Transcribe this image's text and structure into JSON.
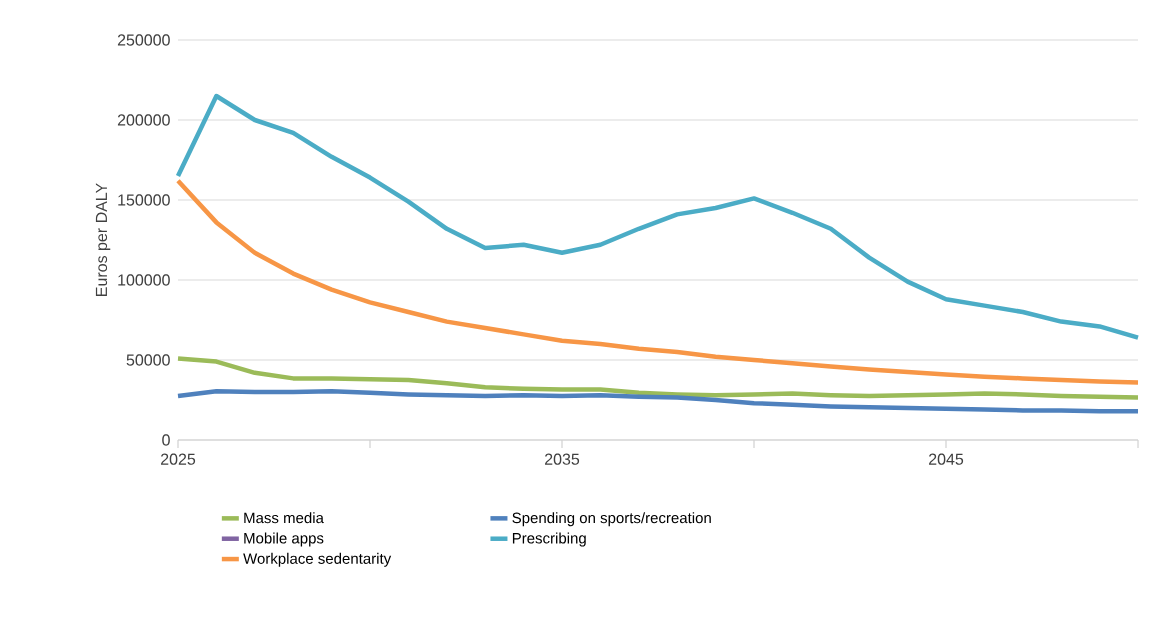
{
  "chart_data": {
    "type": "line",
    "ylabel": "Euros per DALY",
    "x": [
      2025,
      2026,
      2027,
      2028,
      2029,
      2030,
      2031,
      2032,
      2033,
      2034,
      2035,
      2036,
      2037,
      2038,
      2039,
      2040,
      2041,
      2042,
      2043,
      2044,
      2045,
      2046,
      2047,
      2048,
      2049,
      2050
    ],
    "xlim": [
      2025,
      2050
    ],
    "xticks": [
      2025,
      {
        "value": 2030,
        "label": null
      },
      2035,
      {
        "value": 2040,
        "label": null
      },
      2045,
      {
        "value": 2050,
        "label": null
      }
    ],
    "ylim": [
      0,
      250000
    ],
    "yticks": [
      0,
      50000,
      100000,
      150000,
      200000,
      250000
    ],
    "grid": "y",
    "legend": "bottom",
    "marker": "none",
    "line_style": "solid",
    "series": [
      {
        "name": "Mass media",
        "color": "#9bbb59",
        "values": [
          51000,
          49000,
          42000,
          38500,
          38500,
          38000,
          37500,
          35500,
          33000,
          32000,
          31500,
          31500,
          29500,
          28500,
          28000,
          28500,
          29000,
          28000,
          27500,
          28000,
          28500,
          29000,
          28500,
          27500,
          27000,
          26500
        ]
      },
      {
        "name": "Spending on sports/recreation",
        "color": "#4f81bd",
        "values": [
          27500,
          30500,
          30000,
          30000,
          30500,
          29500,
          28500,
          28000,
          27500,
          28000,
          27500,
          28000,
          27000,
          26500,
          25000,
          23000,
          22000,
          21000,
          20500,
          20000,
          19500,
          19000,
          18500,
          18500,
          18000,
          18000
        ]
      },
      {
        "name": "Mobile apps",
        "color": "#8064a2",
        "values": [
          null,
          null,
          null,
          null,
          null,
          null,
          null,
          null,
          null,
          null,
          null,
          null,
          null,
          null,
          null,
          null,
          null,
          null,
          null,
          null,
          null,
          null,
          null,
          null,
          null,
          null
        ]
      },
      {
        "name": "Prescribing",
        "color": "#4bacc6",
        "values": [
          165000,
          215000,
          200000,
          192000,
          177000,
          164000,
          149000,
          132000,
          120000,
          122000,
          117000,
          122000,
          132000,
          141000,
          145000,
          151000,
          142000,
          132000,
          114000,
          99000,
          88000,
          84000,
          80000,
          74000,
          71000,
          64000
        ]
      },
      {
        "name": "Workplace sedentarity",
        "color": "#f79646",
        "values": [
          162000,
          136000,
          117000,
          104000,
          94000,
          86000,
          80000,
          74000,
          70000,
          66000,
          62000,
          60000,
          57000,
          55000,
          52000,
          50000,
          48000,
          46000,
          44000,
          42500,
          41000,
          39500,
          38500,
          37500,
          36500,
          36000
        ]
      }
    ]
  }
}
